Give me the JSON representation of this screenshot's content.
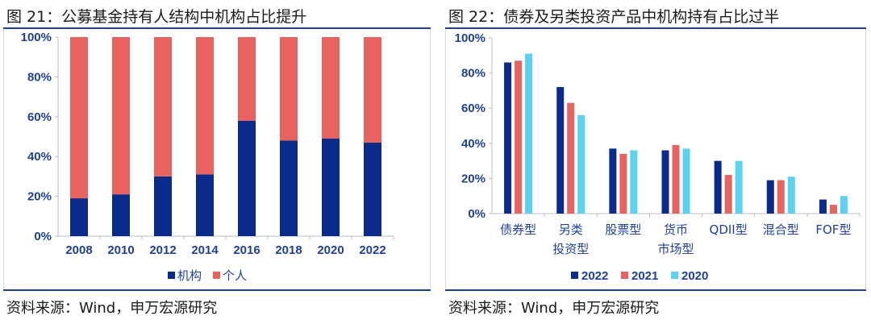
{
  "panel_left": {
    "title": "图 21：公募基金持有人结构中机构占比提升",
    "source": "资料来源：Wind，申万宏源研究"
  },
  "panel_right": {
    "title": "图 22：债券及另类投资产品中机构持有占比过半",
    "source": "资料来源：Wind，申万宏源研究"
  },
  "chart_data": [
    {
      "type": "bar",
      "stacked": true,
      "title": "图 21：公募基金持有人结构中机构占比提升",
      "categories": [
        "2008",
        "2010",
        "2012",
        "2014",
        "2016",
        "2018",
        "2020",
        "2022"
      ],
      "series": [
        {
          "name": "机构",
          "color": "#0a2a8c",
          "values": [
            19,
            21,
            30,
            31,
            58,
            48,
            49,
            47
          ]
        },
        {
          "name": "个人",
          "color": "#e8625f",
          "values": [
            81,
            79,
            70,
            69,
            42,
            52,
            51,
            53
          ]
        }
      ],
      "yticks": [
        "0%",
        "20%",
        "40%",
        "60%",
        "80%",
        "100%"
      ],
      "ylim": [
        0,
        100
      ],
      "legend": "bottom",
      "grid": false
    },
    {
      "type": "bar",
      "stacked": false,
      "title": "图 22：债券及另类投资产品中机构持有占比过半",
      "categories": [
        [
          "债券型"
        ],
        [
          "另类",
          "投资型"
        ],
        [
          "股票型"
        ],
        [
          "货币",
          "市场型"
        ],
        [
          "QDII型"
        ],
        [
          "混合型"
        ],
        [
          "FOF型"
        ]
      ],
      "series": [
        {
          "name": "2022",
          "color": "#0a2a8c",
          "values": [
            86,
            72,
            37,
            36,
            30,
            19,
            8
          ]
        },
        {
          "name": "2021",
          "color": "#e8625f",
          "values": [
            87,
            63,
            34,
            39,
            22,
            19,
            5
          ]
        },
        {
          "name": "2020",
          "color": "#5bd2f0",
          "values": [
            91,
            56,
            36,
            37,
            30,
            21,
            10
          ]
        }
      ],
      "yticks": [
        "0%",
        "20%",
        "40%",
        "60%",
        "80%",
        "100%"
      ],
      "ylim": [
        0,
        100
      ],
      "legend": "bottom",
      "grid": false
    }
  ]
}
